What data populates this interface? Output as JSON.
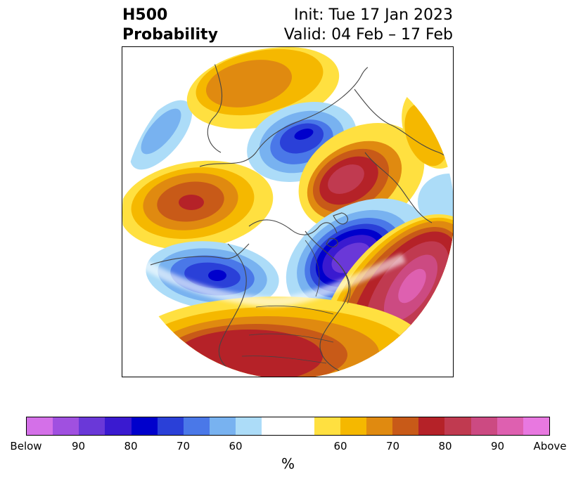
{
  "title": {
    "left_line1": "H500",
    "left_line2": "Probability",
    "right_line1": "Init: Tue 17 Jan 2023",
    "right_line2": "Valid: 04 Feb – 17 Feb"
  },
  "map": {
    "projection": "polar-stereographic",
    "colors": {
      "below_90plus": "#d470e8",
      "below_85": "#a050e0",
      "below_80": "#6a38d8",
      "below_75": "#3a1ad0",
      "below_70": "#0000cc",
      "below_65": "#2a40d8",
      "below_60": "#4a78e8",
      "below_55": "#78b2f0",
      "below_50": "#acdcf8",
      "neutral": "#ffffff",
      "above_50": "#ffe040",
      "above_55": "#f5b800",
      "above_60": "#e08a10",
      "above_65": "#c85a18",
      "above_70": "#b52228",
      "above_75": "#c03a50",
      "above_80": "#cc4a82",
      "above_85": "#de60b0",
      "above_90plus": "#e878e0"
    }
  },
  "colorbar": {
    "colors": [
      "#d470e8",
      "#a050e0",
      "#6a38d8",
      "#3a1ad0",
      "#0000cc",
      "#2a40d8",
      "#4a78e8",
      "#78b2f0",
      "#acdcf8",
      "#ffffff",
      "#ffe040",
      "#f5b800",
      "#e08a10",
      "#c85a18",
      "#b52228",
      "#c03a50",
      "#cc4a82",
      "#de60b0",
      "#e878e0"
    ],
    "tick_labels": [
      "Below",
      "90",
      "80",
      "70",
      "60",
      "60",
      "70",
      "80",
      "90",
      "Above"
    ],
    "unit": "%"
  }
}
